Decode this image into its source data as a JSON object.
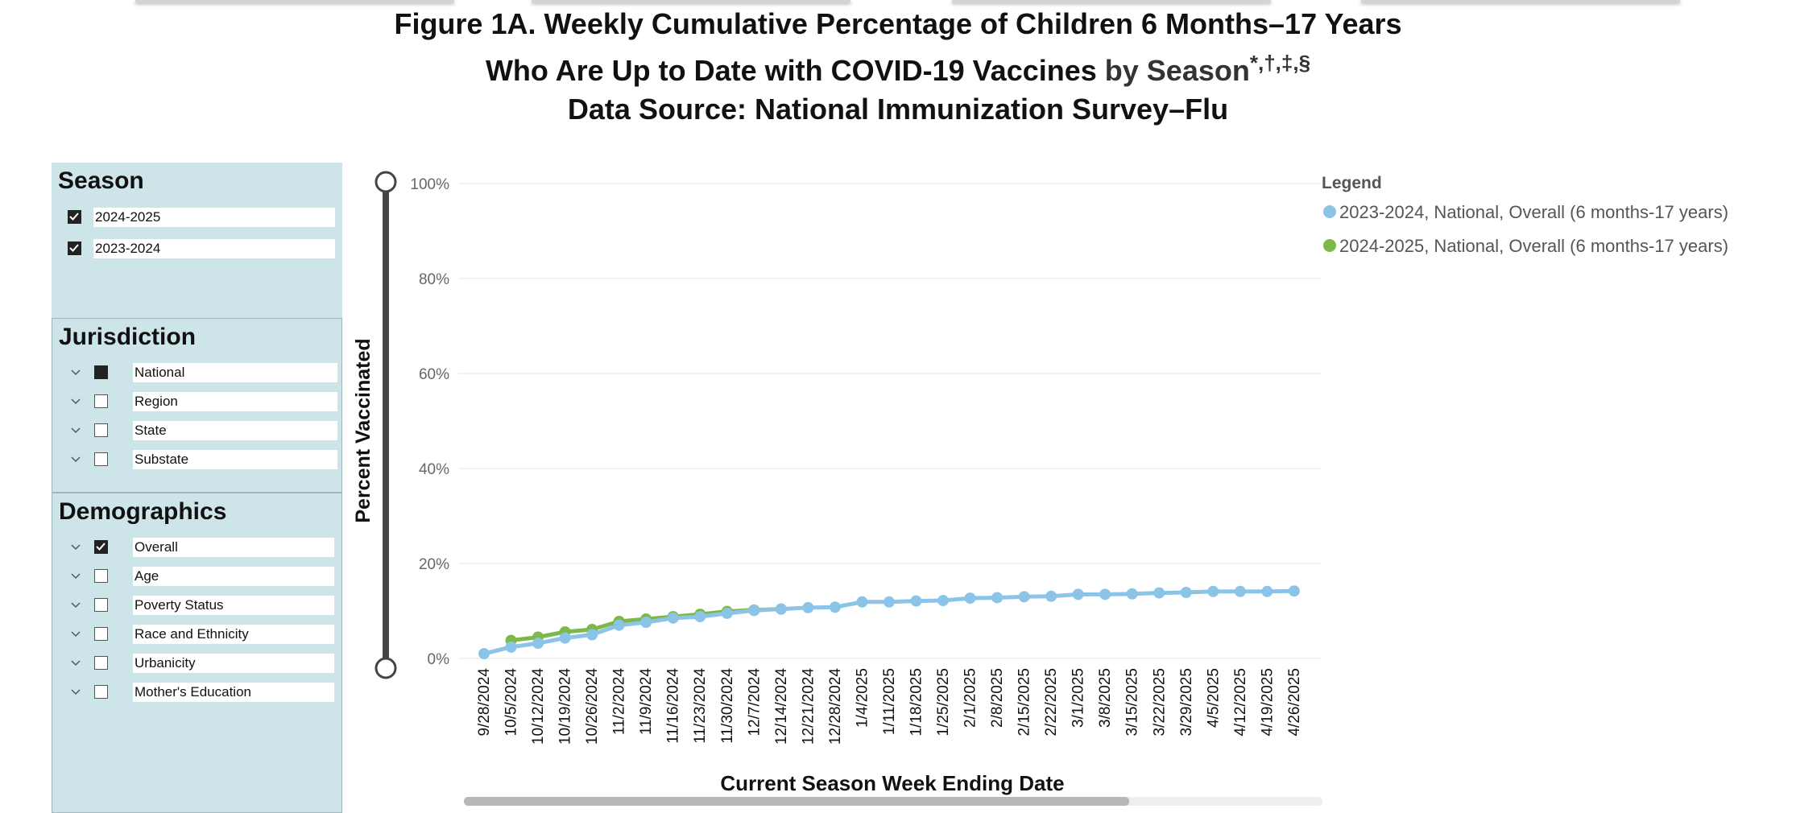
{
  "title": {
    "line1": "Figure 1A. Weekly Cumulative Percentage of Children 6 Months–17 Years",
    "line2_main": "Who Are Up to Date with COVID-19 Vaccines",
    "line2_suffix": "by Season",
    "line2_marks": "*,†,‡,§",
    "line3": "Data Source: National Immunization Survey–Flu"
  },
  "filters": {
    "season": {
      "header": "Season",
      "items": [
        {
          "label": "2024-2025",
          "checked": true
        },
        {
          "label": "2023-2024",
          "checked": true
        }
      ]
    },
    "jurisdiction": {
      "header": "Jurisdiction",
      "items": [
        {
          "label": "National",
          "state": "filled"
        },
        {
          "label": "Region",
          "state": "unchecked"
        },
        {
          "label": "State",
          "state": "unchecked"
        },
        {
          "label": "Substate",
          "state": "unchecked"
        }
      ]
    },
    "demographics": {
      "header": "Demographics",
      "items": [
        {
          "label": "Overall",
          "state": "checked"
        },
        {
          "label": "Age",
          "state": "unchecked"
        },
        {
          "label": "Poverty Status",
          "state": "unchecked"
        },
        {
          "label": "Race and Ethnicity",
          "state": "unchecked"
        },
        {
          "label": "Urbanicity",
          "state": "unchecked"
        },
        {
          "label": "Mother's Education",
          "state": "unchecked"
        }
      ]
    }
  },
  "colors": {
    "panel_bg": "#cde5e8",
    "series_2023": "#8cc4e8",
    "series_2024": "#7db94a",
    "gridline": "#eeeeee",
    "slider_track": "#444444",
    "scrollbar_track": "#eeeeee",
    "scrollbar_thumb": "#b8b8b8"
  },
  "chart_data": {
    "type": "line",
    "xlabel": "Current Season Week Ending Date",
    "ylabel": "Percent Vaccinated",
    "ylim": [
      0,
      100
    ],
    "yticks": [
      "0%",
      "20%",
      "40%",
      "60%",
      "80%",
      "100%"
    ],
    "grid": true,
    "categories": [
      "9/28/2024",
      "10/5/2024",
      "10/12/2024",
      "10/19/2024",
      "10/26/2024",
      "11/2/2024",
      "11/9/2024",
      "11/16/2024",
      "11/23/2024",
      "11/30/2024",
      "12/7/2024",
      "12/14/2024",
      "12/21/2024",
      "12/28/2024",
      "1/4/2025",
      "1/11/2025",
      "1/18/2025",
      "1/25/2025",
      "2/1/2025",
      "2/8/2025",
      "2/15/2025",
      "2/22/2025",
      "3/1/2025",
      "3/8/2025",
      "3/15/2025",
      "3/22/2025",
      "3/29/2025",
      "4/5/2025",
      "4/12/2025",
      "4/19/2025",
      "4/26/2025"
    ],
    "legend": {
      "title": "Legend",
      "position": "top-right"
    },
    "series": [
      {
        "name": "2024-2025, National, Overall (6 months-17 years)",
        "color": "#7db94a",
        "values": [
          null,
          3.8,
          4.5,
          5.6,
          6.1,
          7.8,
          8.3,
          8.8,
          9.3,
          9.9,
          10.2,
          10.4,
          null,
          null,
          null,
          null,
          null,
          null,
          null,
          null,
          null,
          null,
          null,
          null,
          null,
          null,
          null,
          null,
          null,
          null,
          null
        ]
      },
      {
        "name": "2023-2024, National, Overall (6 months-17 years)",
        "color": "#8cc4e8",
        "values": [
          1.0,
          2.4,
          3.2,
          4.3,
          5.0,
          7.0,
          7.6,
          8.5,
          8.8,
          9.5,
          10.1,
          10.4,
          10.7,
          10.8,
          11.9,
          11.9,
          12.1,
          12.2,
          12.7,
          12.8,
          13.0,
          13.1,
          13.5,
          13.5,
          13.6,
          13.8,
          13.9,
          14.1,
          14.1,
          14.1,
          14.2
        ]
      }
    ],
    "legend_order": [
      1,
      0
    ],
    "scrollbar": {
      "visible_fraction": 0.775
    }
  }
}
